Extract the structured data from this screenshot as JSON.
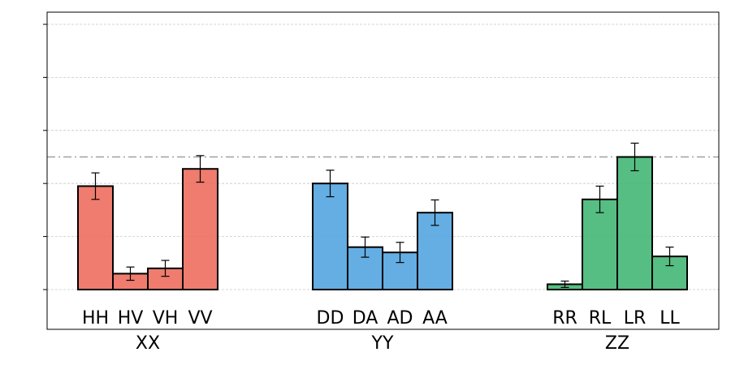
{
  "chart_data": {
    "type": "bar",
    "title": "",
    "xlabel": "",
    "ylabel": "",
    "ylim": [
      -0.15,
      1.05
    ],
    "y_ticks": [
      0,
      0.2,
      0.4,
      0.6,
      0.8,
      1.0
    ],
    "y_tick_labels_visible": false,
    "grid": "horizontal dashed",
    "reference_line": {
      "value": 0.5,
      "style": "dash-dot",
      "color": "#a0a0a0"
    },
    "groups": [
      {
        "name": "XX",
        "color": "#ed6a5a",
        "categories": [
          "HH",
          "HV",
          "VH",
          "VV"
        ],
        "values": [
          0.39,
          0.06,
          0.08,
          0.455
        ],
        "errors": [
          0.05,
          0.025,
          0.03,
          0.05
        ]
      },
      {
        "name": "YY",
        "color": "#4ea3df",
        "categories": [
          "DD",
          "DA",
          "AD",
          "AA"
        ],
        "values": [
          0.4,
          0.16,
          0.14,
          0.29
        ],
        "errors": [
          0.05,
          0.038,
          0.038,
          0.048
        ]
      },
      {
        "name": "ZZ",
        "color": "#3fb571",
        "categories": [
          "RR",
          "RL",
          "LR",
          "LL"
        ],
        "values": [
          0.02,
          0.34,
          0.5,
          0.125
        ],
        "errors": [
          0.012,
          0.05,
          0.052,
          0.035
        ]
      }
    ]
  }
}
